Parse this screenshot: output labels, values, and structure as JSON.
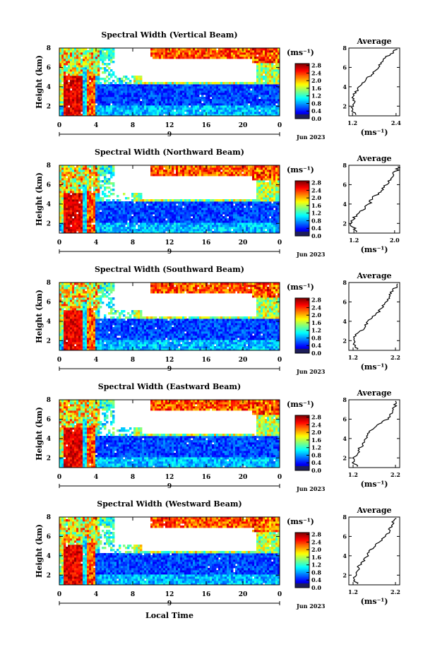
{
  "figure": {
    "xlabel": "Local Time",
    "date_label": "Jun 2023",
    "day_label": "9",
    "ylabel": "Height (km)",
    "units": "(ms⁻¹)",
    "avg_title": "Average",
    "avg_xlabel": "(ms⁻¹)"
  },
  "chart_data": [
    {
      "type": "heatmap",
      "title": "Spectral Width (Vertical Beam)",
      "x_ticks": [
        "0",
        "4",
        "8",
        "12",
        "16",
        "20",
        "0"
      ],
      "y_ticks": [
        "2",
        "4",
        "6",
        "8"
      ],
      "xlim": [
        0,
        24
      ],
      "ylim": [
        1,
        8
      ],
      "colorbar_ticks": [
        "0.0",
        "0.4",
        "0.8",
        "1.2",
        "1.6",
        "2.0",
        "2.4",
        "2.8"
      ],
      "colorbar_range": [
        0,
        2.9
      ],
      "average_profile": {
        "x_ticks": [
          "1.2",
          "2.4"
        ],
        "xlim": [
          1.1,
          2.5
        ],
        "height": [
          1.1,
          1.5,
          2.0,
          2.5,
          3.0,
          3.5,
          4.0,
          4.5,
          5.0,
          5.5,
          6.0,
          6.5,
          7.0,
          7.5,
          8.0
        ],
        "value": [
          1.3,
          1.2,
          1.2,
          1.25,
          1.2,
          1.3,
          1.4,
          1.5,
          1.65,
          1.8,
          1.9,
          2.0,
          2.1,
          2.3,
          2.45
        ]
      }
    },
    {
      "type": "heatmap",
      "title": "Spectral Width (Northward Beam)",
      "x_ticks": [
        "0",
        "4",
        "8",
        "12",
        "16",
        "20",
        "0"
      ],
      "y_ticks": [
        "2",
        "4",
        "6",
        "8"
      ],
      "xlim": [
        0,
        24
      ],
      "ylim": [
        1,
        8
      ],
      "colorbar_ticks": [
        "0.0",
        "0.4",
        "0.8",
        "1.2",
        "1.6",
        "2.0",
        "2.4",
        "2.8"
      ],
      "colorbar_range": [
        0,
        2.9
      ],
      "average_profile": {
        "x_ticks": [
          "1.2",
          "2.0"
        ],
        "xlim": [
          1.1,
          2.1
        ],
        "height": [
          1.1,
          1.5,
          2.0,
          2.5,
          3.0,
          3.5,
          4.0,
          4.5,
          5.0,
          5.5,
          6.0,
          6.5,
          7.0,
          7.5,
          8.0
        ],
        "value": [
          1.25,
          1.2,
          1.15,
          1.2,
          1.25,
          1.4,
          1.5,
          1.55,
          1.65,
          1.75,
          1.85,
          1.9,
          1.95,
          2.05,
          2.1
        ]
      }
    },
    {
      "type": "heatmap",
      "title": "Spectral Width (Southward Beam)",
      "x_ticks": [
        "0",
        "4",
        "8",
        "12",
        "16",
        "20",
        "0"
      ],
      "y_ticks": [
        "2",
        "4",
        "6",
        "8"
      ],
      "xlim": [
        0,
        24
      ],
      "ylim": [
        1,
        8
      ],
      "colorbar_ticks": [
        "0.0",
        "0.4",
        "0.8",
        "1.2",
        "1.6",
        "2.0",
        "2.4",
        "2.8"
      ],
      "colorbar_range": [
        0,
        2.9
      ],
      "average_profile": {
        "x_ticks": [
          "1.2",
          "2.2"
        ],
        "xlim": [
          1.1,
          2.3
        ],
        "height": [
          1.1,
          1.5,
          2.0,
          2.5,
          3.0,
          3.5,
          4.0,
          4.5,
          5.0,
          5.5,
          6.0,
          6.5,
          7.0,
          7.5,
          8.0
        ],
        "value": [
          1.3,
          1.25,
          1.2,
          1.25,
          1.4,
          1.5,
          1.55,
          1.65,
          1.8,
          1.9,
          2.0,
          2.05,
          2.1,
          2.2,
          2.25
        ]
      }
    },
    {
      "type": "heatmap",
      "title": "Spectral Width (Eastward Beam)",
      "x_ticks": [
        "0",
        "4",
        "8",
        "12",
        "16",
        "20",
        "0"
      ],
      "y_ticks": [
        "2",
        "4",
        "6",
        "8"
      ],
      "xlim": [
        0,
        24
      ],
      "ylim": [
        1,
        8
      ],
      "colorbar_ticks": [
        "0.0",
        "0.4",
        "0.8",
        "1.2",
        "1.6",
        "2.0",
        "2.4",
        "2.8"
      ],
      "colorbar_range": [
        0,
        2.9
      ],
      "average_profile": {
        "x_ticks": [
          "1.2",
          "2.2"
        ],
        "xlim": [
          1.1,
          2.3
        ],
        "height": [
          1.1,
          1.5,
          2.0,
          2.5,
          3.0,
          3.5,
          4.0,
          4.5,
          5.0,
          5.5,
          6.0,
          6.5,
          7.0,
          7.5,
          8.0
        ],
        "value": [
          1.3,
          1.2,
          1.2,
          1.3,
          1.35,
          1.45,
          1.5,
          1.55,
          1.65,
          1.8,
          2.0,
          2.1,
          2.15,
          2.2,
          2.25
        ]
      }
    },
    {
      "type": "heatmap",
      "title": "Spectral Width (Westward Beam)",
      "x_ticks": [
        "0",
        "4",
        "8",
        "12",
        "16",
        "20",
        "0"
      ],
      "y_ticks": [
        "2",
        "4",
        "6",
        "8"
      ],
      "xlim": [
        0,
        24
      ],
      "ylim": [
        1,
        8
      ],
      "colorbar_ticks": [
        "0.0",
        "0.4",
        "0.8",
        "1.2",
        "1.6",
        "2.0",
        "2.4",
        "2.8"
      ],
      "colorbar_range": [
        0,
        2.9
      ],
      "average_profile": {
        "x_ticks": [
          "1.2",
          "2.2"
        ],
        "xlim": [
          1.1,
          2.3
        ],
        "height": [
          1.1,
          1.5,
          2.0,
          2.5,
          3.0,
          3.5,
          4.0,
          4.5,
          5.0,
          5.5,
          6.0,
          6.5,
          7.0,
          7.5,
          8.0
        ],
        "value": [
          1.3,
          1.2,
          1.25,
          1.3,
          1.35,
          1.45,
          1.55,
          1.6,
          1.7,
          1.85,
          1.95,
          2.05,
          2.1,
          2.15,
          2.25
        ]
      }
    }
  ]
}
